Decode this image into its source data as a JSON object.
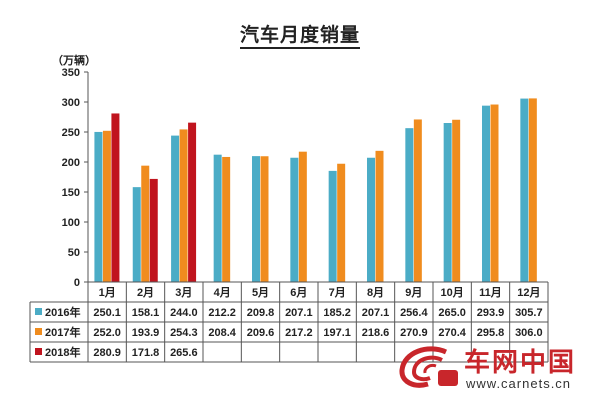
{
  "title": "汽车月度销量",
  "chart_data": {
    "type": "bar",
    "unit": "（万辆）",
    "categories": [
      "1月",
      "2月",
      "3月",
      "4月",
      "5月",
      "6月",
      "7月",
      "8月",
      "9月",
      "10月",
      "11月",
      "12月"
    ],
    "ylim": [
      0,
      350
    ],
    "yticks": [
      0,
      50,
      100,
      150,
      200,
      250,
      300,
      350
    ],
    "series": [
      {
        "name": "2016年",
        "color": "#4bacc6",
        "values": [
          250.1,
          158.1,
          244.0,
          212.2,
          209.8,
          207.1,
          185.2,
          207.1,
          256.4,
          265.0,
          293.9,
          305.7
        ]
      },
      {
        "name": "2017年",
        "color": "#f08c1e",
        "values": [
          252.0,
          193.9,
          254.3,
          208.4,
          209.6,
          217.2,
          197.1,
          218.6,
          270.9,
          270.4,
          295.8,
          306.0
        ]
      },
      {
        "name": "2018年",
        "color": "#c0141e",
        "values": [
          280.9,
          171.8,
          265.6,
          null,
          null,
          null,
          null,
          null,
          null,
          null,
          null,
          null
        ]
      }
    ],
    "table": {
      "rows": [
        {
          "name": "2016年",
          "cells": [
            "250.1",
            "158.1",
            "244.0",
            "212.2",
            "209.8",
            "207.1",
            "185.2",
            "207.1",
            "256.4",
            "265.0",
            "293.9",
            "305.7"
          ]
        },
        {
          "name": "2017年",
          "cells": [
            "252.0",
            "193.9",
            "254.3",
            "208.4",
            "209.6",
            "217.2",
            "197.1",
            "218.6",
            "270.9",
            "270.4",
            "295.8",
            "306.0"
          ]
        },
        {
          "name": "2018年",
          "cells": [
            "280.9",
            "171.8",
            "265.6",
            "",
            "",
            "",
            "",
            "",
            "",
            "",
            "",
            ""
          ]
        }
      ]
    }
  },
  "logo": {
    "name": "车网中国",
    "url": "www.carnets.cn",
    "icon": "carnets-logo-icon",
    "color": "#c8262b"
  }
}
